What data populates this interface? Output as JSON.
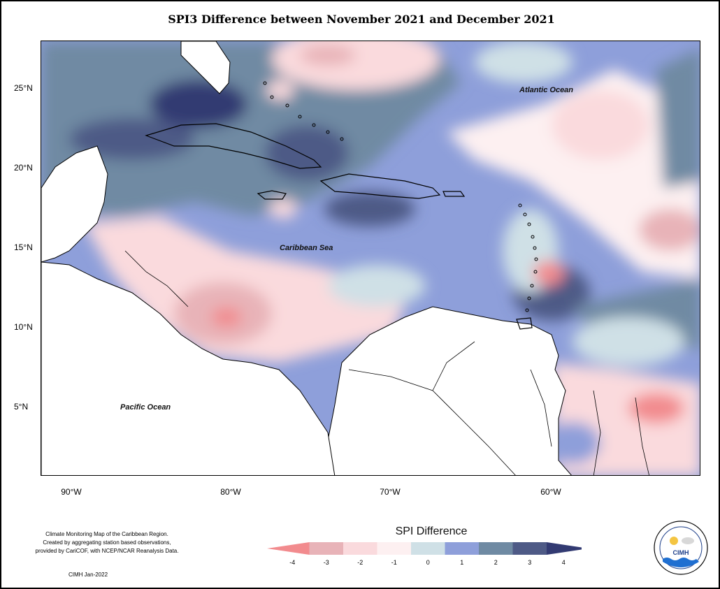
{
  "title": "SPI3 Difference between November 2021 and December 2021",
  "y_axis_labels": [
    "25°N",
    "20°N",
    "15°N",
    "10°N",
    "5°N"
  ],
  "x_axis_labels": [
    "90°W",
    "80°W",
    "70°W",
    "60°W"
  ],
  "ocean_labels": {
    "atlantic": "Atlantic Ocean",
    "caribbean": "Caribbean Sea",
    "pacific": "Pacific Ocean"
  },
  "legend": {
    "title": "SPI Difference",
    "ticks": [
      "-4",
      "-3",
      "-2",
      "-1",
      "0",
      "1",
      "2",
      "3",
      "4"
    ],
    "colors": [
      "#f28b8e",
      "#e8b3b8",
      "#fadadd",
      "#fdf0f1",
      "#cfe0e6",
      "#8e9fda",
      "#6f8aa3",
      "#4e5a86",
      "#323a72"
    ]
  },
  "footnote": {
    "line1": "Climate Monitoring Map of the Caribbean Region.",
    "line2": "Created by aggregating station based observations,",
    "line3": "provided by CariCOF, with NCEP/NCAR Reanalysis Data."
  },
  "credit": "CIMH Jan-2022",
  "logo": {
    "text": "CIMH",
    "ring_text": "Caribbean Institute for Meteorology and Hydrology"
  }
}
